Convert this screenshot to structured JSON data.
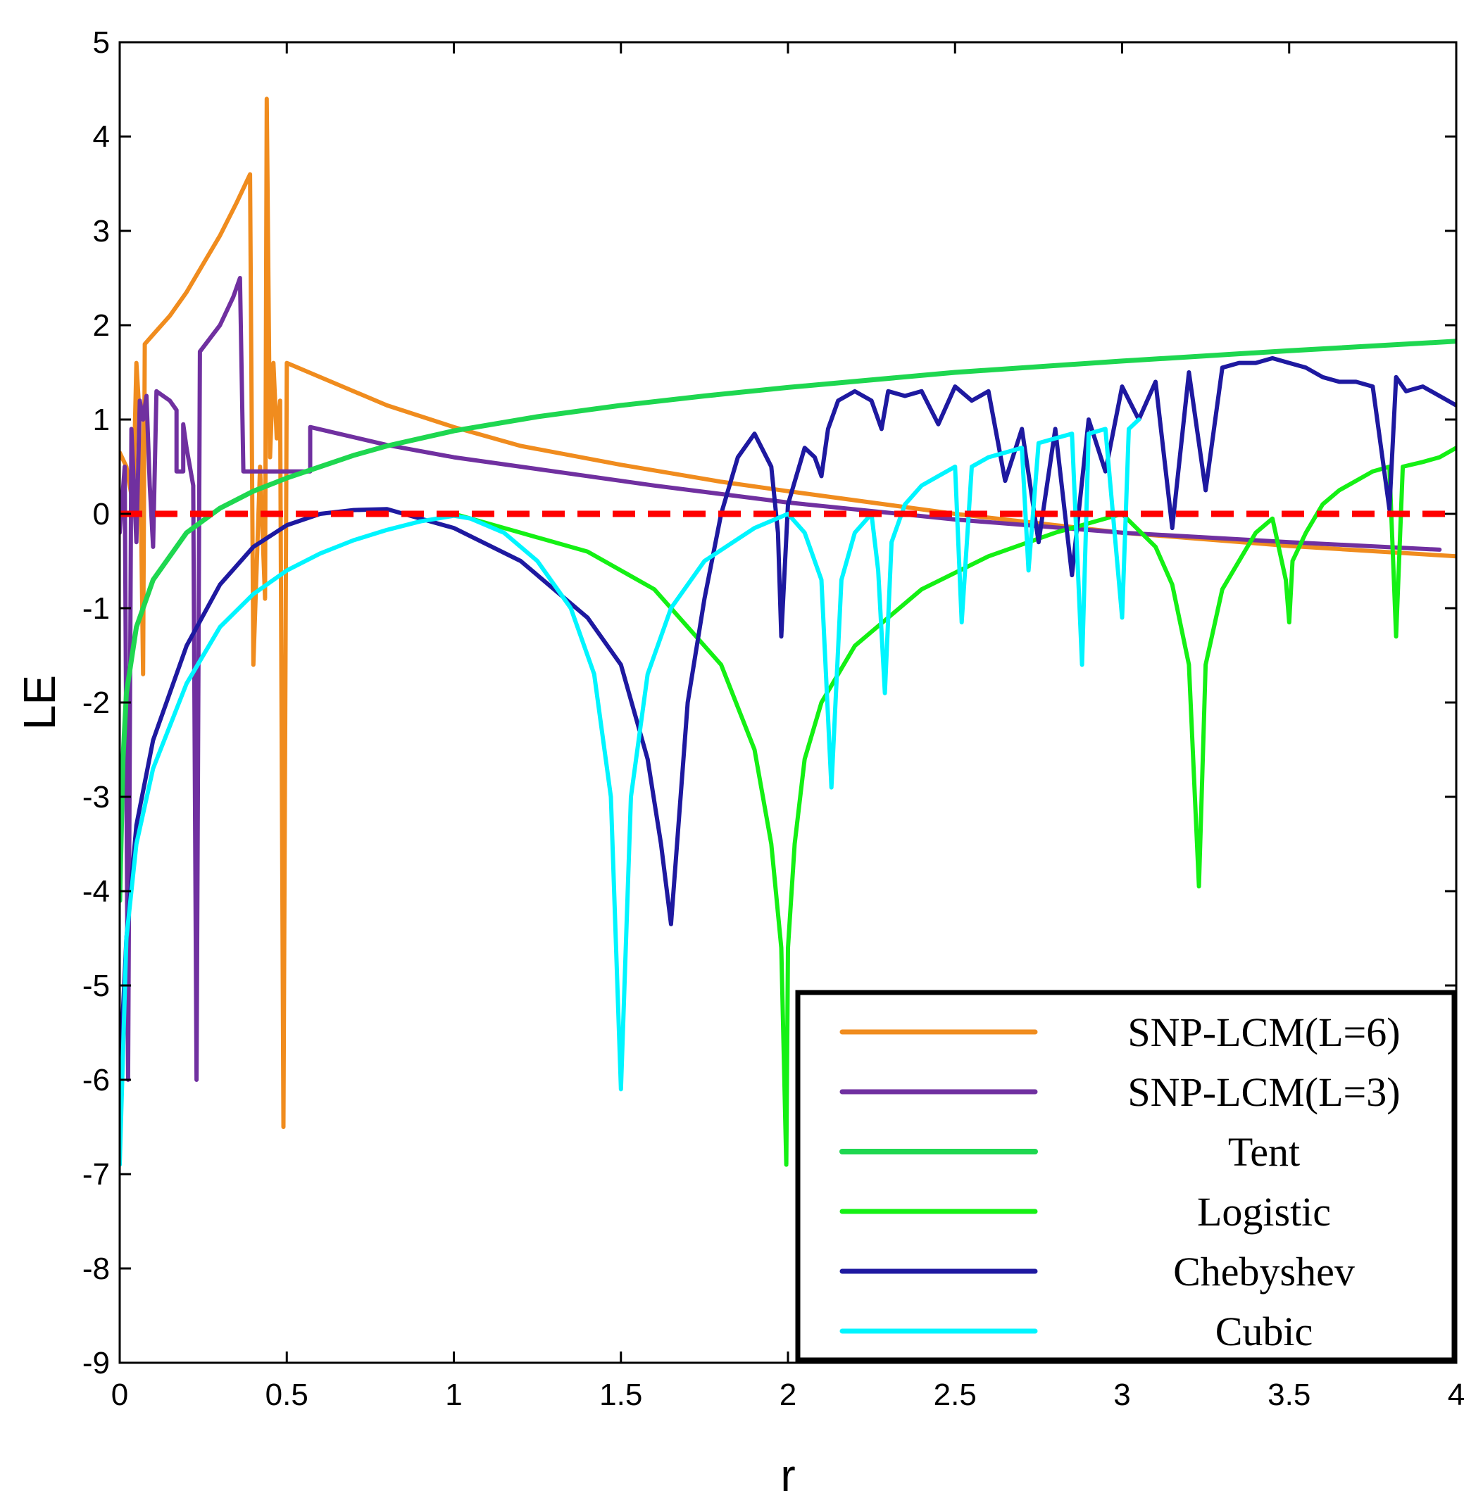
{
  "chart_data": {
    "type": "line",
    "title": "",
    "xlabel": "r",
    "ylabel": "LE",
    "xlim": [
      0,
      4
    ],
    "ylim": [
      -9,
      5
    ],
    "xticks": [
      0,
      0.5,
      1,
      1.5,
      2,
      2.5,
      3,
      3.5,
      4
    ],
    "xtick_labels": [
      "0",
      "0.5",
      "1",
      "1.5",
      "2",
      "2.5",
      "3",
      "3.5",
      "4"
    ],
    "yticks": [
      5,
      4,
      3,
      2,
      1,
      0,
      -1,
      -2,
      -3,
      -4,
      -5,
      -6,
      -7,
      -8,
      -9
    ],
    "ytick_labels": [
      "5",
      "4",
      "3",
      "2",
      "1",
      "0",
      "-1",
      "-2",
      "-3",
      "-4",
      "-5",
      "-6",
      "-7",
      "-8",
      "-9"
    ],
    "grid": false,
    "legend_position": "bottom-right",
    "reference_line": {
      "y": 0,
      "style": "dashed",
      "color": "#ff0000"
    },
    "series": [
      {
        "name": "SNP-LCM(L=6)",
        "color": "#f08c1e",
        "width": 6,
        "points": [
          [
            0,
            0.65
          ],
          [
            0.02,
            0.5
          ],
          [
            0.04,
            0.1
          ],
          [
            0.05,
            1.6
          ],
          [
            0.06,
            1.0
          ],
          [
            0.07,
            -1.7
          ],
          [
            0.075,
            1.8
          ],
          [
            0.1,
            1.9
          ],
          [
            0.15,
            2.1
          ],
          [
            0.2,
            2.35
          ],
          [
            0.25,
            2.65
          ],
          [
            0.3,
            2.95
          ],
          [
            0.35,
            3.3
          ],
          [
            0.39,
            3.6
          ],
          [
            0.4,
            -1.6
          ],
          [
            0.42,
            0.5
          ],
          [
            0.435,
            -0.9
          ],
          [
            0.44,
            4.4
          ],
          [
            0.45,
            0.6
          ],
          [
            0.46,
            1.6
          ],
          [
            0.47,
            0.8
          ],
          [
            0.48,
            1.2
          ],
          [
            0.49,
            -6.5
          ],
          [
            0.5,
            1.6
          ],
          [
            0.6,
            1.45
          ],
          [
            0.8,
            1.15
          ],
          [
            1.0,
            0.92
          ],
          [
            1.2,
            0.72
          ],
          [
            1.5,
            0.52
          ],
          [
            1.8,
            0.34
          ],
          [
            2.0,
            0.24
          ],
          [
            2.5,
            0.0
          ],
          [
            3.0,
            -0.2
          ],
          [
            3.5,
            -0.34
          ],
          [
            4.0,
            -0.45
          ]
        ]
      },
      {
        "name": "SNP-LCM(L=3)",
        "color": "#7030a0",
        "width": 6,
        "points": [
          [
            0.0,
            -0.2
          ],
          [
            0.015,
            0.5
          ],
          [
            0.025,
            -6.0
          ],
          [
            0.035,
            0.9
          ],
          [
            0.05,
            -0.3
          ],
          [
            0.06,
            1.2
          ],
          [
            0.07,
            1.0
          ],
          [
            0.08,
            1.25
          ],
          [
            0.09,
            0.3
          ],
          [
            0.1,
            -0.35
          ],
          [
            0.11,
            1.3
          ],
          [
            0.15,
            1.2
          ],
          [
            0.17,
            1.1
          ],
          [
            0.17,
            0.45
          ],
          [
            0.19,
            0.45
          ],
          [
            0.19,
            0.95
          ],
          [
            0.2,
            0.7
          ],
          [
            0.22,
            0.3
          ],
          [
            0.23,
            -6.0
          ],
          [
            0.24,
            1.72
          ],
          [
            0.3,
            2.0
          ],
          [
            0.34,
            2.3
          ],
          [
            0.36,
            2.5
          ],
          [
            0.37,
            0.45
          ],
          [
            0.57,
            0.45
          ],
          [
            0.57,
            0.92
          ],
          [
            0.8,
            0.73
          ],
          [
            1.0,
            0.6
          ],
          [
            1.3,
            0.45
          ],
          [
            1.6,
            0.3
          ],
          [
            2.0,
            0.12
          ],
          [
            2.5,
            -0.06
          ],
          [
            3.0,
            -0.2
          ],
          [
            3.5,
            -0.3
          ],
          [
            3.95,
            -0.38
          ]
        ]
      },
      {
        "name": "Tent",
        "color": "#1ed750",
        "width": 7,
        "points": [
          [
            0.0,
            -4.1
          ],
          [
            0.01,
            -2.6
          ],
          [
            0.02,
            -1.9
          ],
          [
            0.05,
            -1.2
          ],
          [
            0.1,
            -0.7
          ],
          [
            0.2,
            -0.2
          ],
          [
            0.3,
            0.06
          ],
          [
            0.4,
            0.24
          ],
          [
            0.5,
            0.38
          ],
          [
            0.6,
            0.5
          ],
          [
            0.7,
            0.62
          ],
          [
            0.8,
            0.72
          ],
          [
            1.0,
            0.88
          ],
          [
            1.25,
            1.03
          ],
          [
            1.5,
            1.15
          ],
          [
            1.75,
            1.25
          ],
          [
            2.0,
            1.34
          ],
          [
            2.5,
            1.5
          ],
          [
            3.0,
            1.62
          ],
          [
            3.5,
            1.73
          ],
          [
            4.0,
            1.83
          ]
        ]
      },
      {
        "name": "Logistic",
        "color": "#14f014",
        "width": 6,
        "points": [
          [
            1.0,
            0.0
          ],
          [
            1.2,
            -0.2
          ],
          [
            1.4,
            -0.4
          ],
          [
            1.6,
            -0.8
          ],
          [
            1.8,
            -1.6
          ],
          [
            1.9,
            -2.5
          ],
          [
            1.95,
            -3.5
          ],
          [
            1.98,
            -4.6
          ],
          [
            1.995,
            -6.9
          ],
          [
            2.0,
            -4.6
          ],
          [
            2.02,
            -3.5
          ],
          [
            2.05,
            -2.6
          ],
          [
            2.1,
            -2.0
          ],
          [
            2.2,
            -1.4
          ],
          [
            2.4,
            -0.8
          ],
          [
            2.6,
            -0.45
          ],
          [
            2.8,
            -0.2
          ],
          [
            3.0,
            0.0
          ],
          [
            3.1,
            -0.35
          ],
          [
            3.15,
            -0.75
          ],
          [
            3.2,
            -1.6
          ],
          [
            3.23,
            -3.95
          ],
          [
            3.25,
            -1.6
          ],
          [
            3.3,
            -0.8
          ],
          [
            3.4,
            -0.2
          ],
          [
            3.45,
            -0.05
          ],
          [
            3.49,
            -0.7
          ],
          [
            3.5,
            -1.15
          ],
          [
            3.51,
            -0.5
          ],
          [
            3.55,
            -0.2
          ],
          [
            3.6,
            0.1
          ],
          [
            3.65,
            0.25
          ],
          [
            3.7,
            0.35
          ],
          [
            3.75,
            0.45
          ],
          [
            3.8,
            0.5
          ],
          [
            3.82,
            -1.3
          ],
          [
            3.84,
            0.5
          ],
          [
            3.9,
            0.55
          ],
          [
            3.95,
            0.6
          ],
          [
            4.0,
            0.7
          ]
        ]
      },
      {
        "name": "Chebyshev",
        "color": "#1e19a0",
        "width": 6,
        "points": [
          [
            0.0,
            -6.0
          ],
          [
            0.02,
            -4.5
          ],
          [
            0.05,
            -3.3
          ],
          [
            0.1,
            -2.4
          ],
          [
            0.2,
            -1.4
          ],
          [
            0.3,
            -0.75
          ],
          [
            0.4,
            -0.35
          ],
          [
            0.5,
            -0.12
          ],
          [
            0.6,
            0.0
          ],
          [
            0.7,
            0.04
          ],
          [
            0.8,
            0.05
          ],
          [
            0.9,
            -0.05
          ],
          [
            1.0,
            -0.15
          ],
          [
            1.2,
            -0.5
          ],
          [
            1.4,
            -1.1
          ],
          [
            1.5,
            -1.6
          ],
          [
            1.58,
            -2.6
          ],
          [
            1.62,
            -3.5
          ],
          [
            1.65,
            -4.35
          ],
          [
            1.7,
            -2.0
          ],
          [
            1.75,
            -0.9
          ],
          [
            1.8,
            0.0
          ],
          [
            1.85,
            0.6
          ],
          [
            1.9,
            0.85
          ],
          [
            1.95,
            0.5
          ],
          [
            1.97,
            -0.2
          ],
          [
            1.98,
            -1.3
          ],
          [
            2.0,
            0.1
          ],
          [
            2.05,
            0.7
          ],
          [
            2.08,
            0.6
          ],
          [
            2.1,
            0.4
          ],
          [
            2.12,
            0.9
          ],
          [
            2.15,
            1.2
          ],
          [
            2.2,
            1.3
          ],
          [
            2.25,
            1.2
          ],
          [
            2.28,
            0.9
          ],
          [
            2.3,
            1.3
          ],
          [
            2.35,
            1.25
          ],
          [
            2.4,
            1.3
          ],
          [
            2.45,
            0.95
          ],
          [
            2.5,
            1.35
          ],
          [
            2.55,
            1.2
          ],
          [
            2.6,
            1.3
          ],
          [
            2.65,
            0.35
          ],
          [
            2.7,
            0.9
          ],
          [
            2.75,
            -0.3
          ],
          [
            2.8,
            0.9
          ],
          [
            2.85,
            -0.65
          ],
          [
            2.9,
            1.0
          ],
          [
            2.95,
            0.45
          ],
          [
            3.0,
            1.35
          ],
          [
            3.05,
            1.0
          ],
          [
            3.1,
            1.4
          ],
          [
            3.15,
            -0.15
          ],
          [
            3.2,
            1.5
          ],
          [
            3.25,
            0.25
          ],
          [
            3.3,
            1.55
          ],
          [
            3.35,
            1.6
          ],
          [
            3.4,
            1.6
          ],
          [
            3.45,
            1.65
          ],
          [
            3.5,
            1.6
          ],
          [
            3.55,
            1.55
          ],
          [
            3.6,
            1.45
          ],
          [
            3.65,
            1.4
          ],
          [
            3.7,
            1.4
          ],
          [
            3.75,
            1.35
          ],
          [
            3.8,
            0.05
          ],
          [
            3.82,
            1.45
          ],
          [
            3.85,
            1.3
          ],
          [
            3.9,
            1.35
          ],
          [
            3.95,
            1.25
          ],
          [
            4.0,
            1.15
          ]
        ]
      },
      {
        "name": "Cubic",
        "color": "#00f5ff",
        "width": 6,
        "points": [
          [
            0.0,
            -6.9
          ],
          [
            0.02,
            -4.5
          ],
          [
            0.05,
            -3.5
          ],
          [
            0.1,
            -2.7
          ],
          [
            0.2,
            -1.8
          ],
          [
            0.3,
            -1.2
          ],
          [
            0.4,
            -0.85
          ],
          [
            0.5,
            -0.6
          ],
          [
            0.6,
            -0.42
          ],
          [
            0.7,
            -0.28
          ],
          [
            0.8,
            -0.17
          ],
          [
            0.9,
            -0.08
          ],
          [
            1.0,
            -0.02
          ],
          [
            1.05,
            -0.05
          ],
          [
            1.15,
            -0.2
          ],
          [
            1.25,
            -0.5
          ],
          [
            1.35,
            -1.0
          ],
          [
            1.42,
            -1.7
          ],
          [
            1.47,
            -3.0
          ],
          [
            1.5,
            -6.1
          ],
          [
            1.53,
            -3.0
          ],
          [
            1.58,
            -1.7
          ],
          [
            1.65,
            -1.0
          ],
          [
            1.75,
            -0.5
          ],
          [
            1.9,
            -0.15
          ],
          [
            2.0,
            0.0
          ],
          [
            2.05,
            -0.2
          ],
          [
            2.1,
            -0.7
          ],
          [
            2.13,
            -2.9
          ],
          [
            2.16,
            -0.7
          ],
          [
            2.2,
            -0.2
          ],
          [
            2.25,
            0.0
          ],
          [
            2.27,
            -0.6
          ],
          [
            2.29,
            -1.9
          ],
          [
            2.31,
            -0.3
          ],
          [
            2.35,
            0.1
          ],
          [
            2.4,
            0.3
          ],
          [
            2.45,
            0.4
          ],
          [
            2.5,
            0.5
          ],
          [
            2.52,
            -1.15
          ],
          [
            2.55,
            0.5
          ],
          [
            2.6,
            0.6
          ],
          [
            2.7,
            0.7
          ],
          [
            2.72,
            -0.6
          ],
          [
            2.75,
            0.75
          ],
          [
            2.8,
            0.8
          ],
          [
            2.85,
            0.85
          ],
          [
            2.88,
            -1.6
          ],
          [
            2.9,
            0.85
          ],
          [
            2.95,
            0.9
          ],
          [
            3.0,
            -1.1
          ],
          [
            3.02,
            0.9
          ],
          [
            3.05,
            1.0
          ]
        ]
      }
    ]
  }
}
